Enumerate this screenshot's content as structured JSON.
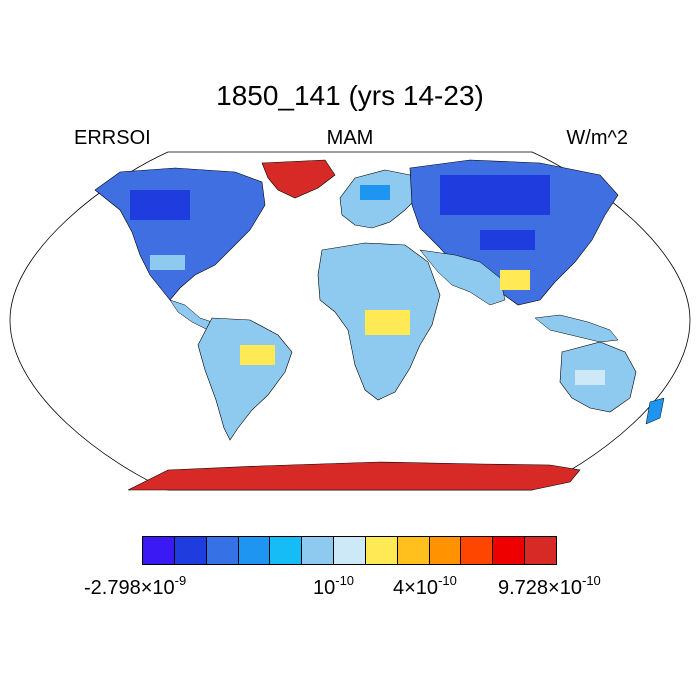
{
  "title": "1850_141 (yrs 14-23)",
  "left_label": "ERRSOI",
  "center_label": "MAM",
  "right_label": "W/m^2",
  "colorbar": {
    "colors": [
      "#3b19f5",
      "#1f3ddf",
      "#3671e6",
      "#1e95f0",
      "#16bcf5",
      "#8ecaf0",
      "#cde9f8",
      "#ffea55",
      "#ffc01e",
      "#ff9200",
      "#ff4600",
      "#ee0000",
      "#d72a27"
    ],
    "labels": [
      {
        "mantissa": "-2.798×10",
        "exp": "-9"
      },
      {
        "mantissa": "10",
        "exp": "-10"
      },
      {
        "mantissa": "4×10",
        "exp": "-10"
      },
      {
        "mantissa": "9.728×10",
        "exp": "-10"
      }
    ]
  }
}
